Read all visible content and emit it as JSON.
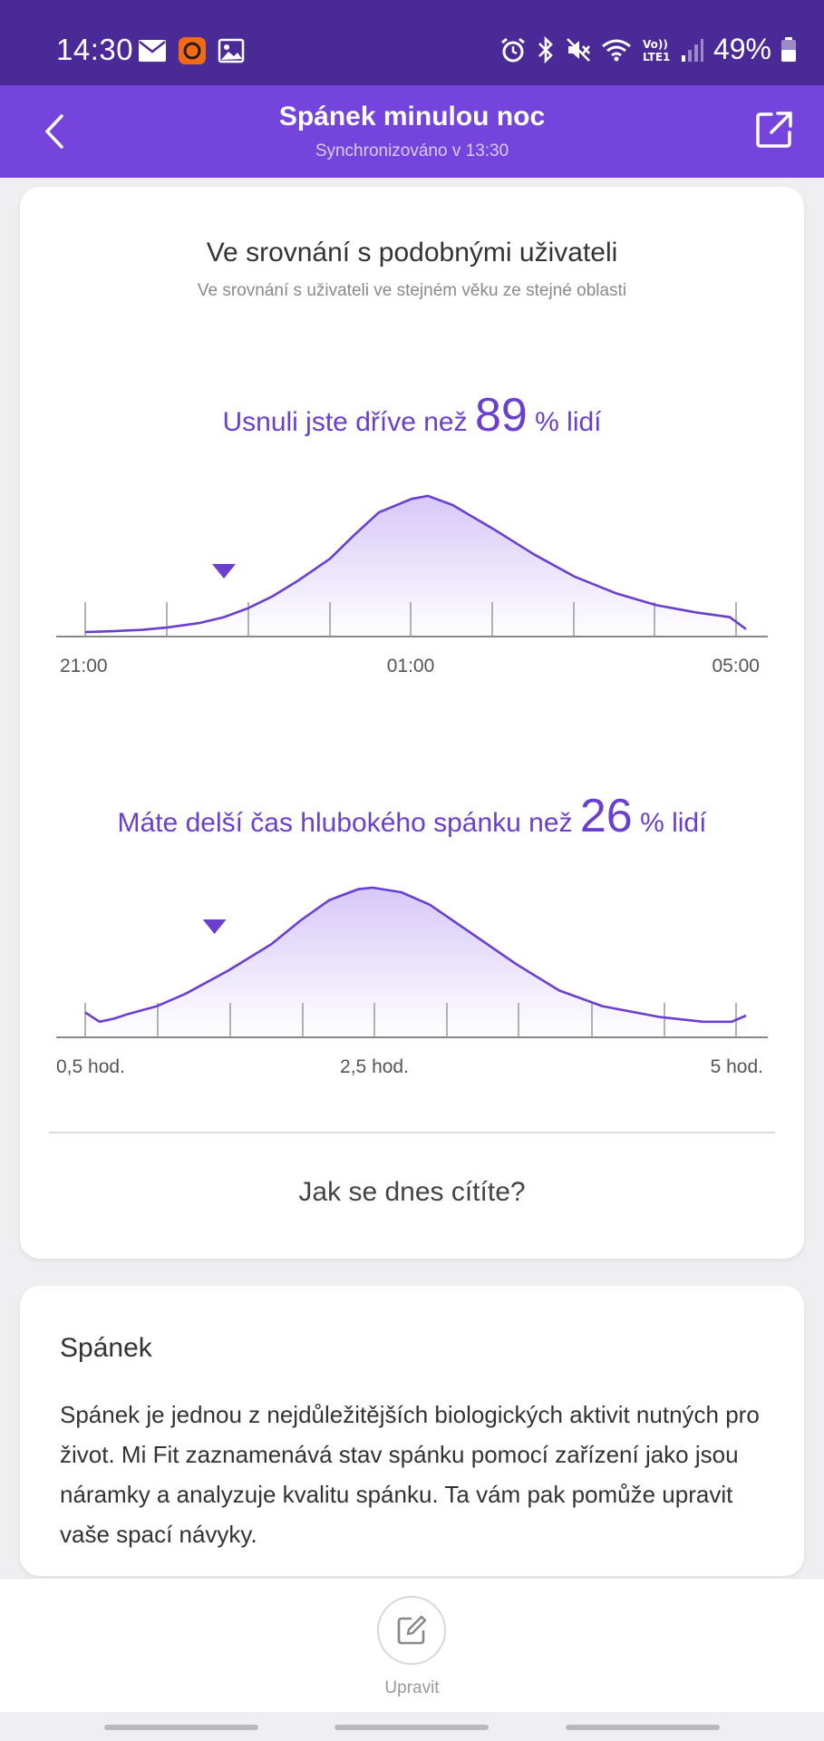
{
  "status_bar": {
    "time": "14:30",
    "battery_percent": "49%",
    "left_icons": [
      "mail-icon",
      "mi-app-icon",
      "gallery-icon"
    ],
    "right_icons": [
      "alarm-icon",
      "bluetooth-icon",
      "mute-icon",
      "wifi-icon",
      "volte-icon",
      "signal-icon",
      "battery-icon"
    ]
  },
  "app_bar": {
    "title": "Spánek minulou noc",
    "subtitle": "Synchronizováno v 13:30"
  },
  "comparison": {
    "title": "Ve srovnání s podobnými uživateli",
    "subtitle": "Ve srovnání s uživateli ve stejném věku ze stejné oblasti",
    "sleep_onset": {
      "prefix": "Usnuli jste dříve než",
      "value": "89",
      "suffix": "% lidí"
    },
    "deep_sleep": {
      "prefix": "Máte delší čas hlubokého spánku než",
      "value": "26",
      "suffix": "% lidí"
    },
    "feel_question": "Jak se dnes cítíte?"
  },
  "chart_data": [
    {
      "type": "area",
      "x_tick_labels": [
        "21:00",
        "01:00",
        "05:00"
      ],
      "x": [
        0,
        0.3,
        0.7,
        1.0,
        1.4,
        1.7,
        2.0,
        2.3,
        2.6,
        3.0,
        3.3,
        3.6,
        4.0,
        4.2,
        4.5,
        5.0,
        5.5,
        6.0,
        6.5,
        7.0,
        7.5,
        7.9,
        8.1
      ],
      "values": [
        3,
        3.5,
        4.5,
        6,
        9,
        13,
        19,
        27,
        37,
        52,
        68,
        83,
        92,
        94,
        88,
        72,
        55,
        40,
        29,
        21,
        16,
        13,
        5
      ],
      "marker_x": 1.7,
      "ylim": [
        0,
        100
      ],
      "accent_color": "#6a3fd0"
    },
    {
      "type": "area",
      "x_tick_labels": [
        "0,5 hod.",
        "2,5 hod.",
        "5 hod."
      ],
      "x": [
        0.5,
        0.6,
        0.7,
        0.8,
        1.0,
        1.2,
        1.5,
        1.8,
        2.0,
        2.2,
        2.4,
        2.5,
        2.7,
        2.9,
        3.2,
        3.5,
        3.8,
        4.1,
        4.5,
        4.8,
        5.0,
        5.1
      ],
      "values": [
        16,
        10,
        12,
        15,
        20,
        28,
        43,
        60,
        75,
        88,
        95,
        96,
        93,
        85,
        66,
        47,
        30,
        20,
        13,
        10,
        10,
        14
      ],
      "marker_x": 1.4,
      "ylim": [
        0,
        100
      ],
      "accent_color": "#6a3fd0"
    }
  ],
  "info_card": {
    "title": "Spánek",
    "body": "Spánek je jednou z nejdůležitějších biologických aktivit nutných pro život. Mi Fit zaznamenává stav spánku pomocí zařízení jako jsou náramky a analyzuje kvalitu spánku. Ta vám pak pomůže upravit vaše spací návyky."
  },
  "bottom_bar": {
    "edit_label": "Upravit"
  }
}
